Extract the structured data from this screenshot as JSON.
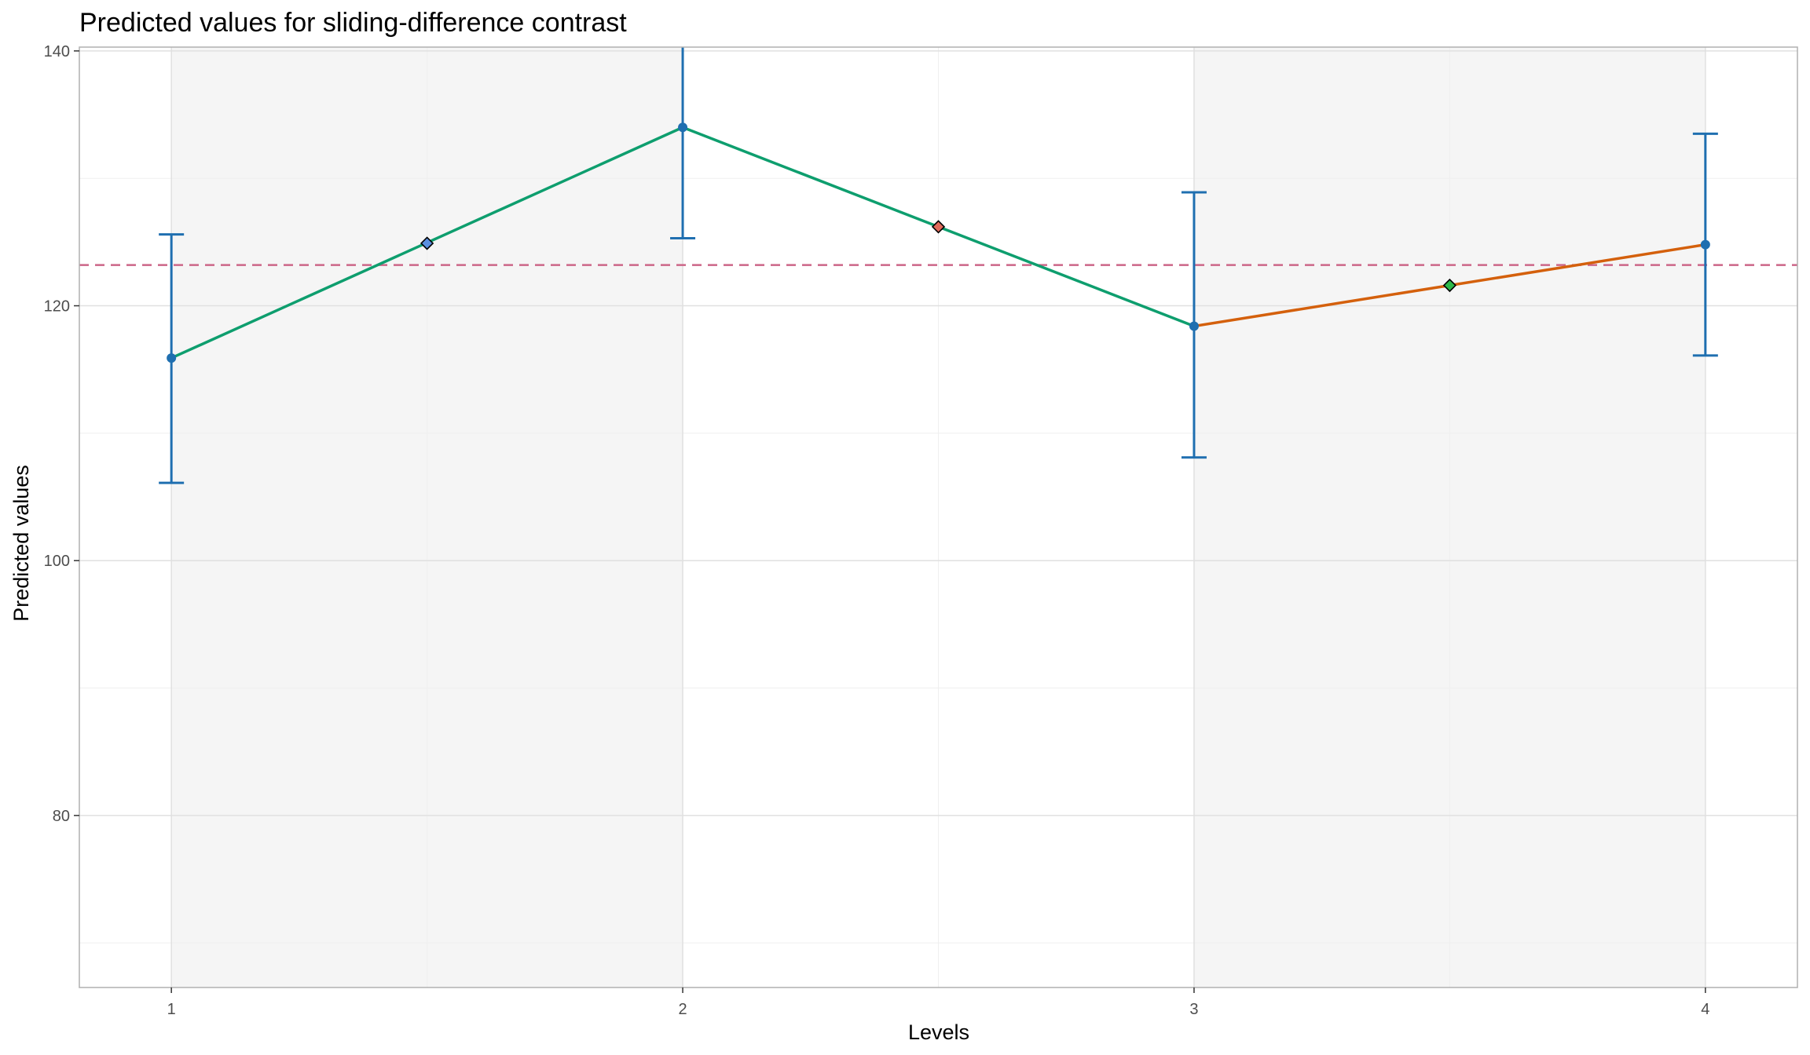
{
  "chart_data": {
    "type": "line",
    "title": "Predicted values for sliding-difference contrast",
    "xlabel": "Levels",
    "ylabel": "Predicted values",
    "x_ticks": [
      "1",
      "2",
      "3",
      "4"
    ],
    "y_ticks": [
      80,
      100,
      120,
      140
    ],
    "xlim": [
      0.82,
      4.18
    ],
    "ylim": [
      66.5,
      140.3
    ],
    "grid": true,
    "shaded_bands": [
      [
        1,
        2
      ],
      [
        3,
        4
      ]
    ],
    "reference_line": {
      "y": 123.2,
      "style": "dashed",
      "color": "#cc6688"
    },
    "series": [
      {
        "x": [
          1,
          2,
          3,
          4
        ],
        "y": [
          115.9,
          134.0,
          118.4,
          124.8
        ],
        "lower": [
          106.1,
          125.3,
          108.1,
          116.1
        ],
        "upper": [
          125.6,
          142.0,
          128.9,
          133.5
        ],
        "color": "#1f6fb0"
      }
    ],
    "segments": [
      {
        "from": 1,
        "to": 2,
        "color": "#0e9e6e"
      },
      {
        "from": 2,
        "to": 3,
        "color": "#0e9e6e"
      },
      {
        "from": 3,
        "to": 4,
        "color": "#d4600c"
      }
    ],
    "midpoint_markers": [
      {
        "x": 1.5,
        "y": 124.9,
        "color": "#5b8fe0"
      },
      {
        "x": 2.5,
        "y": 126.2,
        "color": "#e06a5a"
      },
      {
        "x": 3.5,
        "y": 121.6,
        "color": "#2db84a"
      }
    ],
    "colors": {
      "point": "#1f6fb0",
      "errorbar": "#1f6fb0",
      "band": "#f5f5f5",
      "grid_major": "#e0e0e0",
      "grid_minor": "#efefef",
      "panel_border": "#b0b0b0"
    }
  }
}
